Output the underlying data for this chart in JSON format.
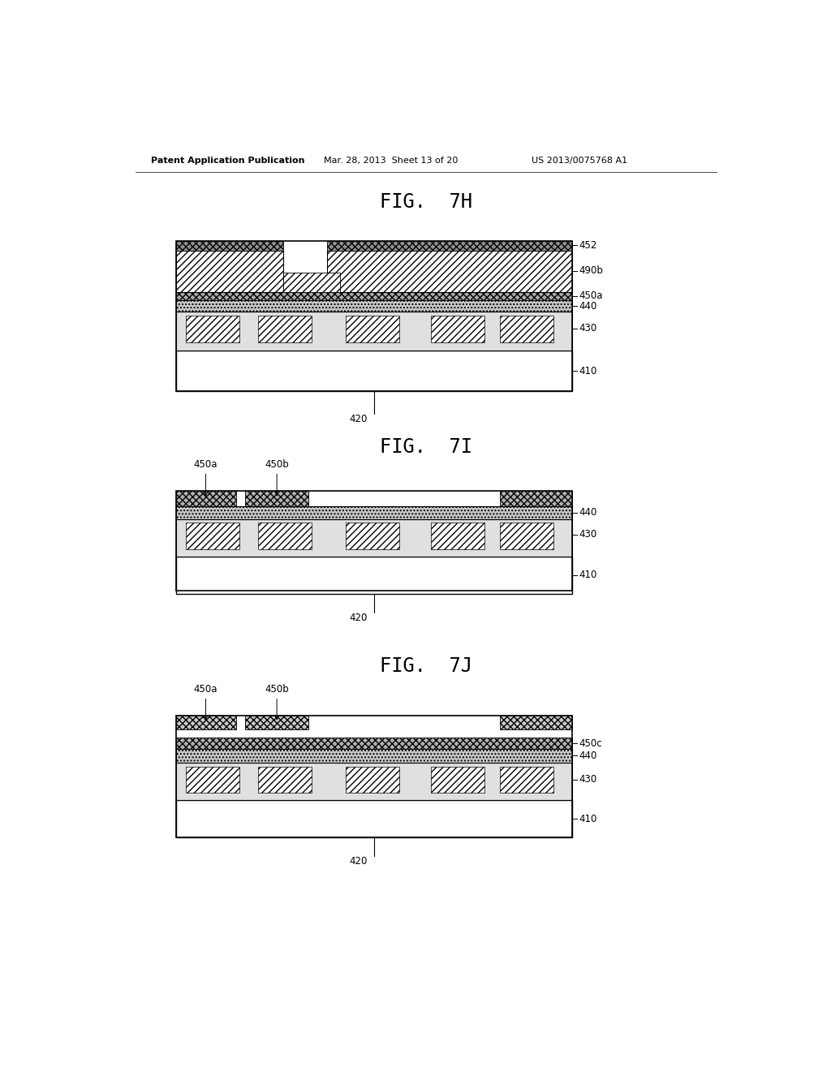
{
  "title_header_left": "Patent Application Publication",
  "title_header_mid": "Mar. 28, 2013  Sheet 13 of 20",
  "title_header_right": "US 2013/0075768 A1",
  "background_color": "#ffffff",
  "gray_light": "#d0d0d0",
  "gray_med": "#b0b0b0",
  "gray_dark": "#888888",
  "white": "#ffffff"
}
